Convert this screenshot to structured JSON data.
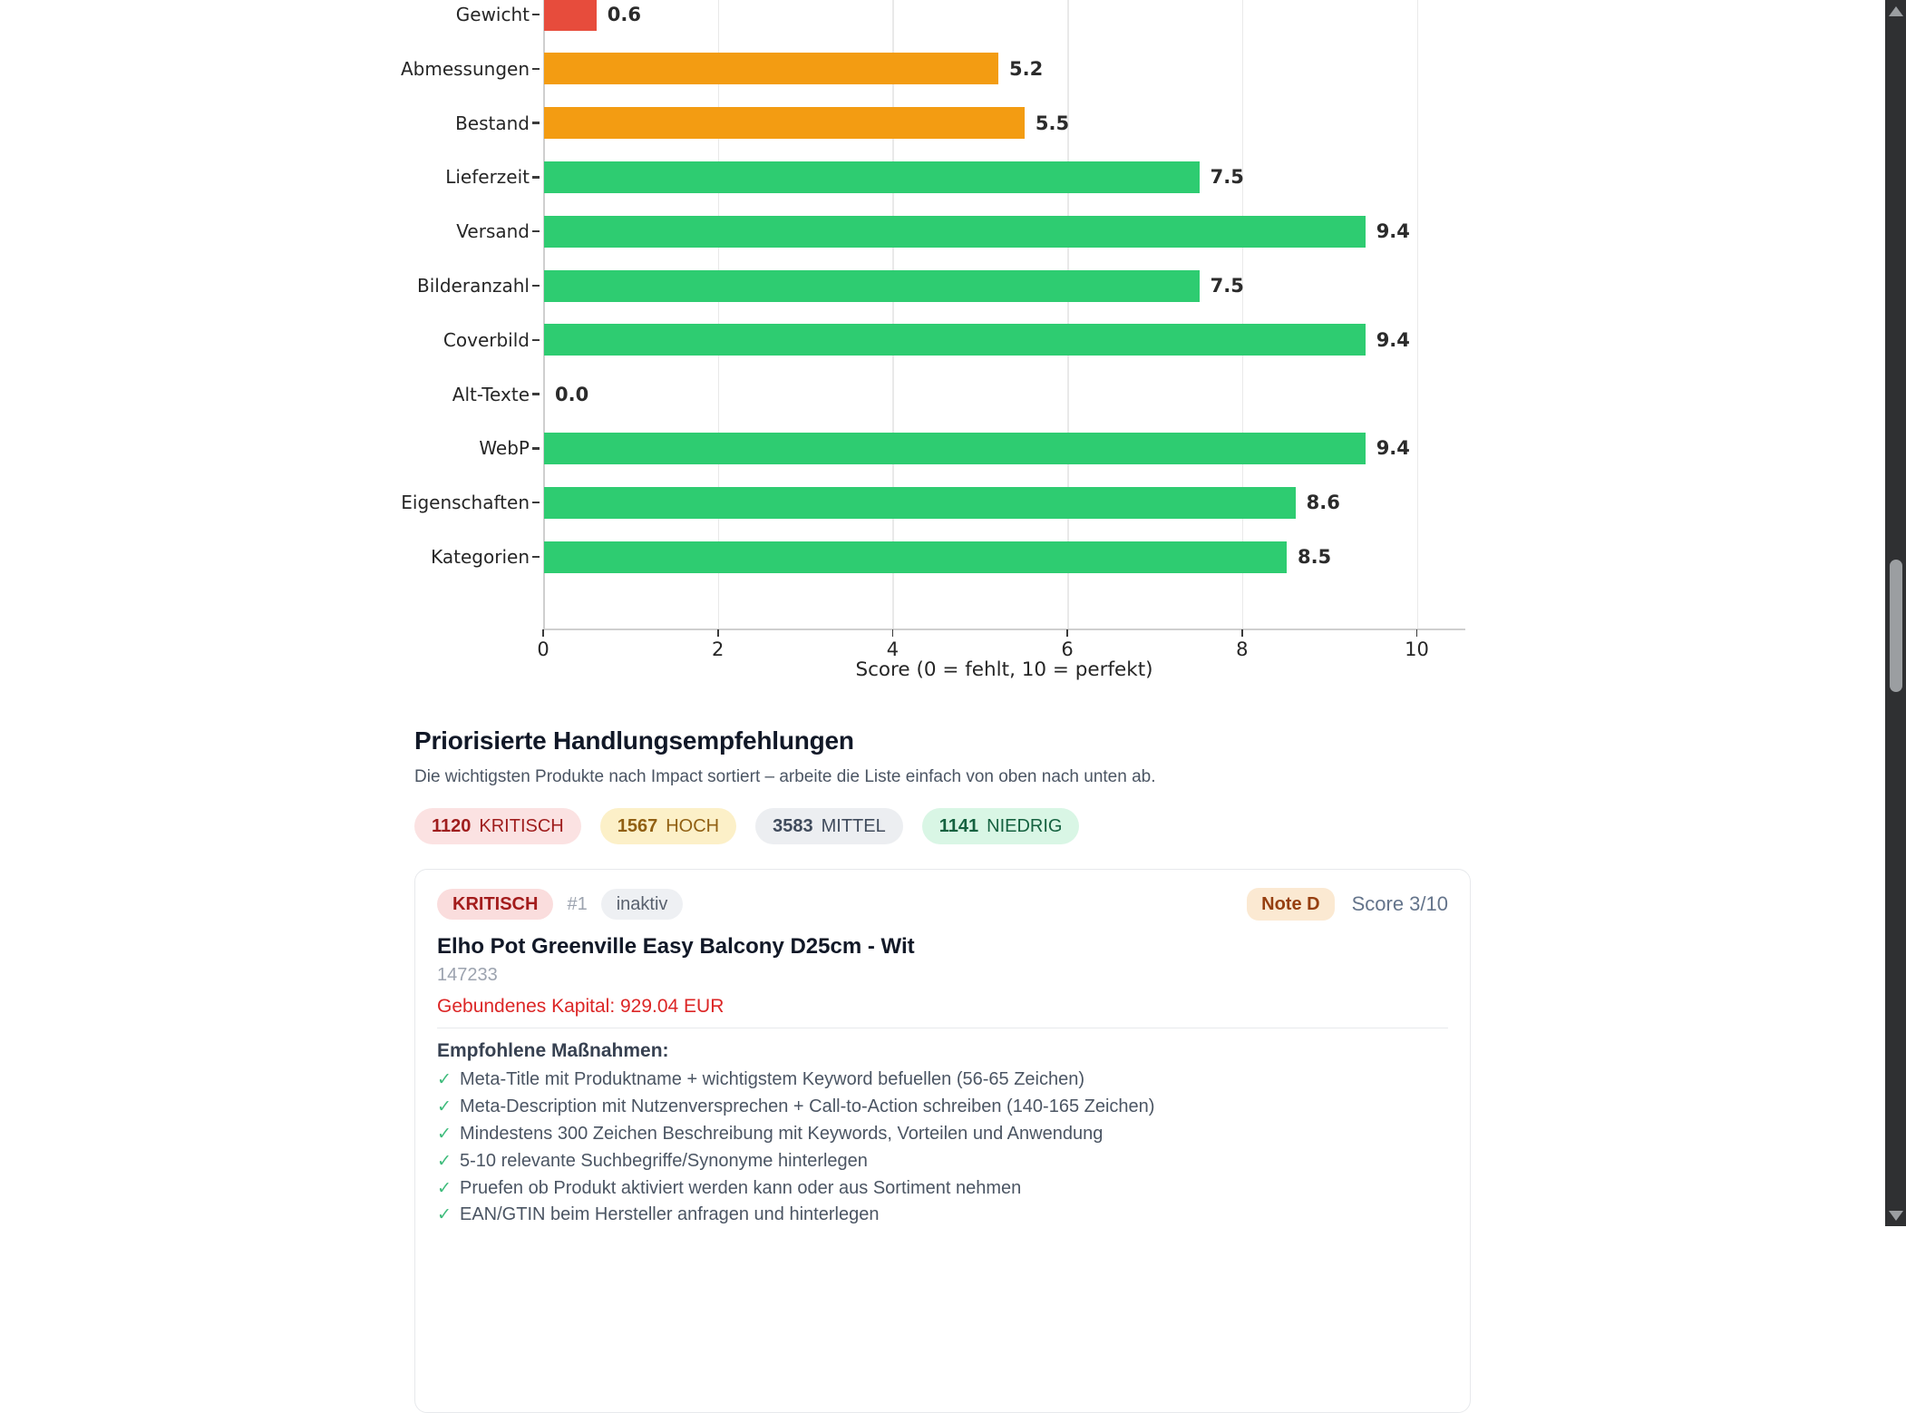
{
  "chart_data": {
    "type": "bar",
    "orientation": "horizontal",
    "title": "",
    "categories": [
      "Gewicht",
      "Abmessungen",
      "Bestand",
      "Lieferzeit",
      "Versand",
      "Bilderanzahl",
      "Coverbild",
      "Alt-Texte",
      "WebP",
      "Eigenschaften",
      "Kategorien"
    ],
    "values": [
      0.6,
      5.2,
      5.5,
      7.5,
      9.4,
      7.5,
      9.4,
      0.0,
      9.4,
      8.6,
      8.5
    ],
    "bar_colors": [
      "#e74c3c",
      "#f39c12",
      "#f39c12",
      "#2ecc71",
      "#2ecc71",
      "#2ecc71",
      "#2ecc71",
      "#2ecc71",
      "#2ecc71",
      "#2ecc71",
      "#2ecc71"
    ],
    "xlabel": "Score (0 = fehlt, 10 = perfekt)",
    "xticks": [
      0,
      2,
      4,
      6,
      8,
      10
    ],
    "xlim": [
      0,
      10.55
    ],
    "grid": true,
    "legend": false
  },
  "recommendations": {
    "title": "Priorisierte Handlungsempfehlungen",
    "subtitle": "Die wichtigsten Produkte nach Impact sortiert – arbeite die Liste einfach von oben nach unten ab.",
    "summary": [
      {
        "count": "1120",
        "label": "KRITISCH",
        "bg": "#fbe2e2",
        "color": "#9f1d1d"
      },
      {
        "count": "1567",
        "label": "HOCH",
        "bg": "#fcf0c8",
        "color": "#916013"
      },
      {
        "count": "3583",
        "label": "MITTEL",
        "bg": "#eceef1",
        "color": "#404b5c"
      },
      {
        "count": "1141",
        "label": "NIEDRIG",
        "bg": "#d9f6e5",
        "color": "#156240"
      }
    ],
    "card": {
      "severity": "KRITISCH",
      "severity_style": {
        "bg": "#fadddd",
        "color": "#a31c1c"
      },
      "rank": "#1",
      "status": "inaktiv",
      "status_style": {
        "bg": "#eef0f3",
        "color": "#59616e"
      },
      "grade": "Note D",
      "grade_style": {
        "bg": "#fbe9d2",
        "color": "#963f10"
      },
      "score": "Score 3/10",
      "product_name": "Elho Pot Greenville Easy Balcony D25cm - Wit",
      "product_id": "147233",
      "capital": "Gebundenes Kapital: 929.04 EUR",
      "actions_title": "Empfohlene Maßnahmen:",
      "check_icon": "✓",
      "actions": [
        "Meta-Title mit Produktname + wichtigstem Keyword befuellen (56-65 Zeichen)",
        "Meta-Description mit Nutzenversprechen + Call-to-Action schreiben (140-165 Zeichen)",
        "Mindestens 300 Zeichen Beschreibung mit Keywords, Vorteilen und Anwendung",
        "5-10 relevante Suchbegriffe/Synonyme hinterlegen",
        "Pruefen ob Produkt aktiviert werden kann oder aus Sortiment nehmen",
        "EAN/GTIN beim Hersteller anfragen und hinterlegen"
      ]
    }
  }
}
